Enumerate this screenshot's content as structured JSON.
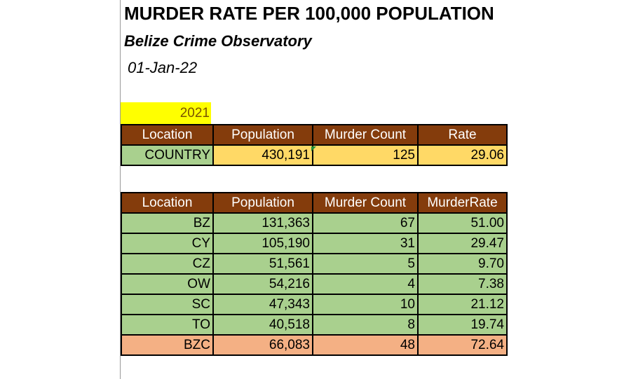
{
  "header": {
    "title": "MURDER RATE PER 100,000 POPULATION",
    "subtitle": "Belize Crime Observatory",
    "date": "01-Jan-22",
    "year": "2021"
  },
  "colors": {
    "header_fill": "#843c0c",
    "district_fill": "#a9d08e",
    "country_value_fill": "#ffd966",
    "highlight_fill": "#f4b084",
    "year_fill": "#ffff00"
  },
  "country_table": {
    "columns": [
      "Location",
      "Population",
      "Murder Count",
      "Rate"
    ],
    "row": {
      "location": "COUNTRY",
      "population": "430,191",
      "murder_count": "125",
      "rate": "29.06"
    }
  },
  "district_table": {
    "columns": [
      "Location",
      "Population",
      "Murder Count",
      "MurderRate"
    ],
    "rows": [
      {
        "location": "BZ",
        "population": "131,363",
        "murder_count": "67",
        "rate": "51.00"
      },
      {
        "location": "CY",
        "population": "105,190",
        "murder_count": "31",
        "rate": "29.47"
      },
      {
        "location": "CZ",
        "population": "51,561",
        "murder_count": "5",
        "rate": "9.70"
      },
      {
        "location": "OW",
        "population": "54,216",
        "murder_count": "4",
        "rate": "7.38"
      },
      {
        "location": "SC",
        "population": "47,343",
        "murder_count": "10",
        "rate": "21.12"
      },
      {
        "location": "TO",
        "population": "40,518",
        "murder_count": "8",
        "rate": "19.74"
      },
      {
        "location": "BZC",
        "population": "66,083",
        "murder_count": "48",
        "rate": "72.64"
      }
    ]
  }
}
